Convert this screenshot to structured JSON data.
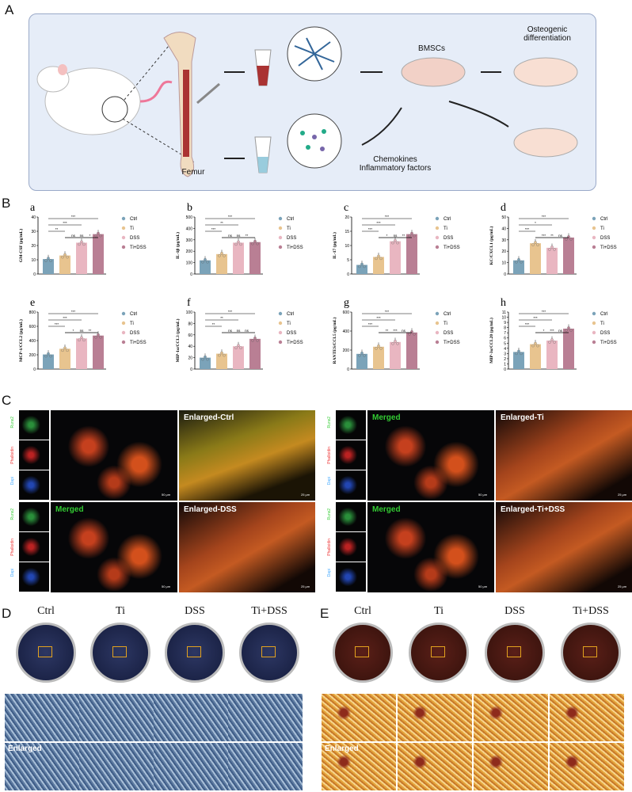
{
  "panels": {
    "A": "A",
    "B": "B",
    "C": "C",
    "D": "D",
    "E": "E"
  },
  "panelA": {
    "femur": "Femur",
    "bmscs": "BMSCs",
    "osteo": "Osteogenic\ndifferentiation",
    "chemo": "Chemokines\nInflammatory factors"
  },
  "legend": [
    "Ctrl",
    "Ti",
    "DSS",
    "Ti+DSS"
  ],
  "colors": {
    "ctrl": "#7ba3b9",
    "ti": "#e8c48f",
    "dss": "#e9b6c1",
    "tidss": "#b97f94",
    "orange": "#e3a21e"
  },
  "chart_data": [
    {
      "type": "bar",
      "sub": "a",
      "ylabel": "GM-CSF (pg/mL)",
      "ylim": [
        0,
        40
      ],
      "ticks": [
        0,
        10,
        20,
        30,
        40
      ],
      "values": [
        10.5,
        13,
        22,
        28
      ],
      "sig": [
        "***",
        "***",
        "**",
        "ns",
        "*",
        "ns"
      ]
    },
    {
      "type": "bar",
      "sub": "b",
      "ylabel": "IL-1β (pg/mL)",
      "ylim": [
        0,
        500
      ],
      "ticks": [
        0,
        100,
        200,
        300,
        400,
        500
      ],
      "values": [
        120,
        175,
        275,
        280
      ],
      "sig": [
        "***",
        "**",
        "***",
        "ns",
        "**",
        "ns"
      ]
    },
    {
      "type": "bar",
      "sub": "c",
      "ylabel": "IL-17 (pg/mL)",
      "ylim": [
        0,
        20
      ],
      "ticks": [
        0,
        5,
        10,
        15,
        20
      ],
      "values": [
        3.2,
        6,
        11.5,
        14
      ],
      "sig": [
        "***",
        "***",
        "***",
        "*",
        "**",
        "ns"
      ]
    },
    {
      "type": "bar",
      "sub": "d",
      "ylabel": "KC/CXCL1 (pg/mL)",
      "ylim": [
        0,
        50
      ],
      "ticks": [
        0,
        10,
        20,
        30,
        40,
        50
      ],
      "values": [
        12,
        27,
        23,
        32
      ],
      "sig": [
        "***",
        "*",
        "***",
        "***",
        "ns",
        "**"
      ]
    },
    {
      "type": "bar",
      "sub": "e",
      "ylabel": "MCP-1/CCL2 (pg/mL)",
      "ylim": [
        0,
        800
      ],
      "ticks": [
        0,
        200,
        400,
        600,
        800
      ],
      "values": [
        205,
        285,
        430,
        470
      ],
      "sig": [
        "***",
        "***",
        "***",
        "*",
        "**",
        "ns"
      ]
    },
    {
      "type": "bar",
      "sub": "f",
      "ylabel": "MIP-1α/CCL3 (pg/mL)",
      "ylim": [
        0,
        100
      ],
      "ticks": [
        0,
        20,
        40,
        60,
        80,
        100
      ],
      "values": [
        20,
        27,
        40,
        53
      ],
      "sig": [
        "***",
        "**",
        "**",
        "ns",
        "ns",
        "ns"
      ]
    },
    {
      "type": "bar",
      "sub": "g",
      "ylabel": "RANTES/CCL5 (pg/mL)",
      "ylim": [
        0,
        600
      ],
      "ticks": [
        0,
        200,
        400,
        600
      ],
      "values": [
        160,
        235,
        285,
        385
      ],
      "sig": [
        "***",
        "***",
        "***",
        "**",
        "ns",
        "***"
      ]
    },
    {
      "type": "bar",
      "sub": "h",
      "ylabel": "MIP-3α/CCL20 (pg/mL)",
      "ylim": [
        0,
        11
      ],
      "ticks": [
        0,
        1,
        2,
        3,
        4,
        5,
        6,
        7,
        8,
        9,
        10,
        11
      ],
      "values": [
        3.3,
        4.8,
        5.5,
        7.8
      ],
      "sig": [
        "***",
        "***",
        "***",
        "*",
        "ns",
        "***"
      ]
    }
  ],
  "panelC": {
    "side": [
      "Runx2",
      "Phalloidin",
      "Dapi"
    ],
    "merged": [
      "Merged",
      "Merged",
      "Merged"
    ],
    "enlarged": [
      "Enlarged-Ctrl",
      "Enlarged-Ti",
      "Enlarged-DSS",
      "Enlarged-Ti+DSS"
    ],
    "scale50": "50 μm",
    "scale25": "25 μm"
  },
  "panelD": {
    "groups": [
      "Ctrl",
      "Ti",
      "DSS",
      "Ti+DSS"
    ],
    "enlarged": "Enlarged"
  },
  "panelE": {
    "groups": [
      "Ctrl",
      "Ti",
      "DSS",
      "Ti+DSS"
    ],
    "enlarged": "Enlarged"
  }
}
